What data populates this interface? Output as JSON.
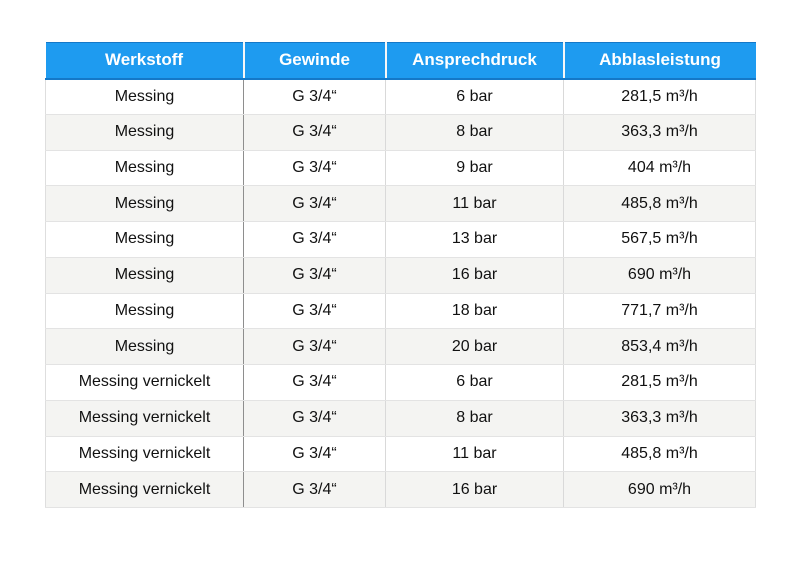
{
  "table": {
    "columns": [
      {
        "key": "werkstoff",
        "label": "Werkstoff"
      },
      {
        "key": "gewinde",
        "label": "Gewinde"
      },
      {
        "key": "ansprechdruck",
        "label": "Ansprechdruck"
      },
      {
        "key": "abblasleistung",
        "label": "Abblasleistung"
      }
    ],
    "rows": [
      [
        "Messing",
        "G 3/4“",
        "6 bar",
        "281,5 m³/h"
      ],
      [
        "Messing",
        "G 3/4“",
        "8 bar",
        "363,3 m³/h"
      ],
      [
        "Messing",
        "G 3/4“",
        "9 bar",
        "404 m³/h"
      ],
      [
        "Messing",
        "G 3/4“",
        "11 bar",
        "485,8 m³/h"
      ],
      [
        "Messing",
        "G 3/4“",
        "13 bar",
        "567,5 m³/h"
      ],
      [
        "Messing",
        "G 3/4“",
        "16 bar",
        "690 m³/h"
      ],
      [
        "Messing",
        "G 3/4“",
        "18 bar",
        "771,7 m³/h"
      ],
      [
        "Messing",
        "G 3/4“",
        "20 bar",
        "853,4 m³/h"
      ],
      [
        "Messing vernickelt",
        "G 3/4“",
        "6 bar",
        "281,5 m³/h"
      ],
      [
        "Messing vernickelt",
        "G 3/4“",
        "8 bar",
        "363,3 m³/h"
      ],
      [
        "Messing vernickelt",
        "G 3/4“",
        "11 bar",
        "485,8 m³/h"
      ],
      [
        "Messing vernickelt",
        "G 3/4“",
        "16 bar",
        "690 m³/h"
      ]
    ]
  },
  "colors": {
    "header_bg": "#1e9bf0",
    "header_border": "#1478c8",
    "header_text": "#ffffff",
    "row_bg": "#ffffff",
    "row_alt_bg": "#f4f4f2",
    "row_separator": "#e3e3e3",
    "grid_outer": "#dedede",
    "grid_light": "#d9d9d9",
    "grid_dark": "#8e8e8e",
    "text": "#111111"
  }
}
